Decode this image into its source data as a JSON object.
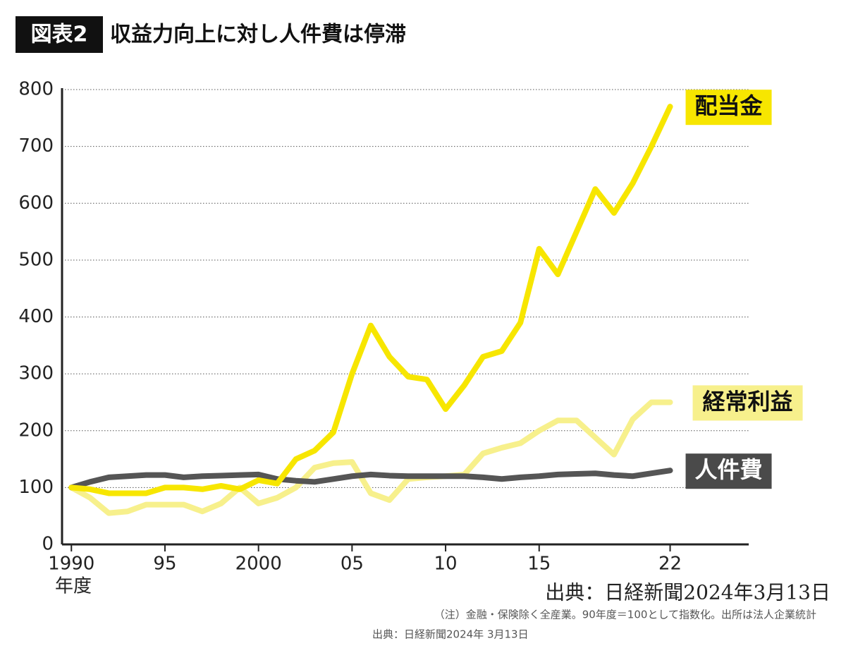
{
  "chart_data": {
    "type": "line",
    "title_badge": "図表2",
    "title": "収益力向上に対し人件費は停滞",
    "x_label": "年度",
    "x": [
      1990,
      1991,
      1992,
      1993,
      1994,
      1995,
      1996,
      1997,
      1998,
      1999,
      2000,
      2001,
      2002,
      2003,
      2004,
      2005,
      2006,
      2007,
      2008,
      2009,
      2010,
      2011,
      2012,
      2013,
      2014,
      2015,
      2016,
      2017,
      2018,
      2019,
      2020,
      2021,
      2022
    ],
    "series": [
      {
        "name": "配当金",
        "color": "#f7e600",
        "label_bg": "#f7e600",
        "label_color": "#111111",
        "values": [
          100,
          97,
          90,
          90,
          90,
          100,
          100,
          97,
          103,
          97,
          113,
          107,
          150,
          165,
          197,
          300,
          385,
          330,
          295,
          290,
          238,
          280,
          330,
          340,
          390,
          520,
          475,
          550,
          625,
          583,
          635,
          700,
          770
        ]
      },
      {
        "name": "経常利益",
        "color": "#f7f08c",
        "label_bg": "#f7f08c",
        "label_color": "#111111",
        "values": [
          100,
          82,
          55,
          58,
          70,
          70,
          70,
          58,
          72,
          100,
          72,
          82,
          100,
          135,
          143,
          145,
          90,
          78,
          115,
          118,
          120,
          123,
          160,
          170,
          178,
          200,
          218,
          218,
          188,
          158,
          220,
          250,
          250
        ]
      },
      {
        "name": "人件費",
        "color": "#555555",
        "label_bg": "#4a4a4a",
        "label_color": "#ffffff",
        "values": [
          100,
          110,
          118,
          120,
          122,
          122,
          118,
          120,
          121,
          122,
          123,
          115,
          112,
          110,
          115,
          120,
          123,
          121,
          120,
          120,
          120,
          120,
          118,
          115,
          118,
          120,
          123,
          124,
          125,
          122,
          120,
          125,
          130
        ]
      }
    ],
    "xlim": [
      1989.5,
      2026.2
    ],
    "xticks": [
      {
        "value": 1990,
        "label": "1990"
      },
      {
        "value": 1995,
        "label": "95"
      },
      {
        "value": 2000,
        "label": "2000"
      },
      {
        "value": 2005,
        "label": "05"
      },
      {
        "value": 2010,
        "label": "10"
      },
      {
        "value": 2015,
        "label": "15"
      },
      {
        "value": 2022,
        "label": "22"
      }
    ],
    "ylim": [
      0,
      800
    ],
    "yticks": [
      0,
      100,
      200,
      300,
      400,
      500,
      600,
      700,
      800
    ],
    "grid": true,
    "source_large": "出典：日経新聞2024年3月13日",
    "note": "（注）金融・保険除く全産業。90年度＝100として指数化。出所は法人企業統計",
    "source_small": "出典：日経新聞2024年 3月13日"
  }
}
